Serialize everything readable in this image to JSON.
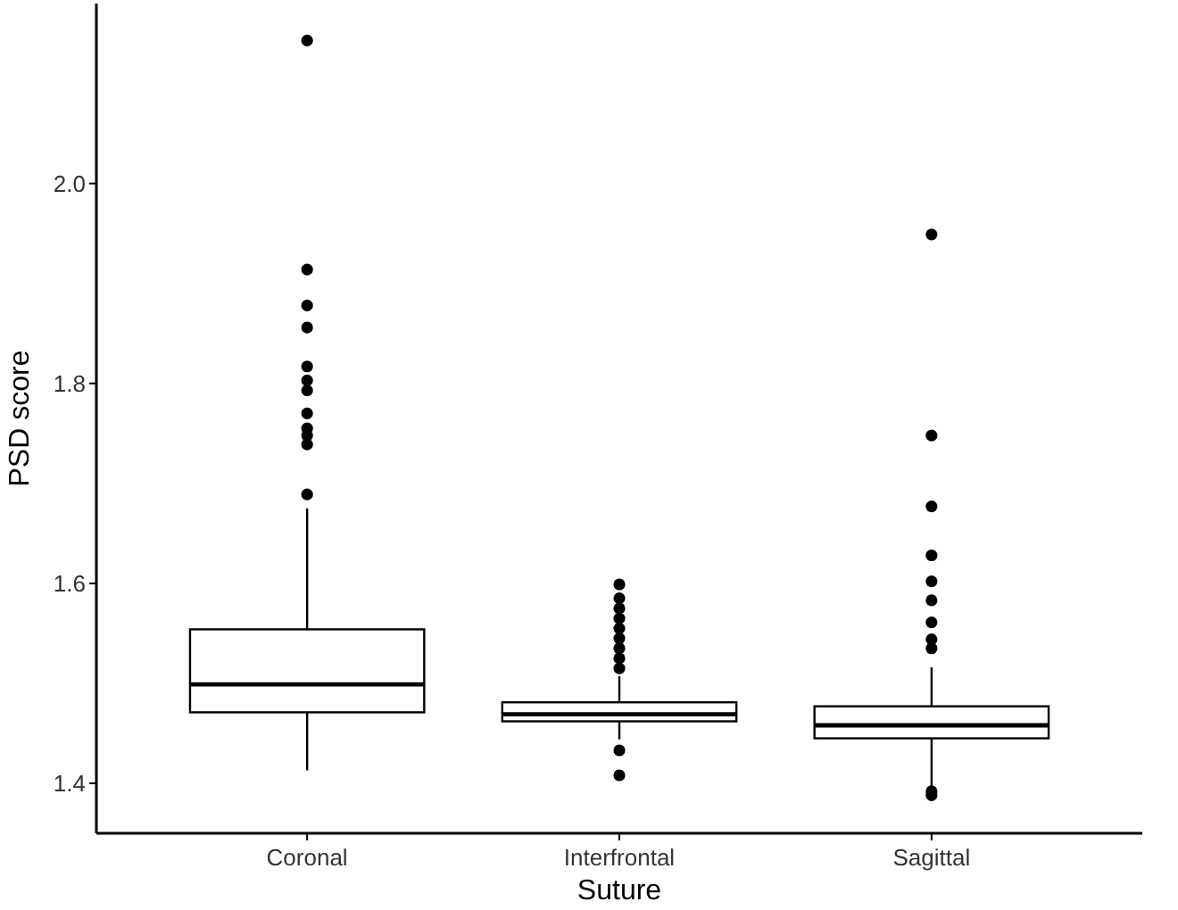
{
  "chart_data": {
    "type": "box",
    "xlabel": "Suture",
    "ylabel": "PSD score",
    "categories": [
      "Coronal",
      "Interfrontal",
      "Sagittal"
    ],
    "ylim": [
      1.35,
      2.18
    ],
    "yticks": [
      {
        "value": 1.4,
        "label": "1.4"
      },
      {
        "value": 1.6,
        "label": "1.6"
      },
      {
        "value": 1.8,
        "label": "1.8"
      },
      {
        "value": 2.0,
        "label": "2.0"
      }
    ],
    "grid": false,
    "boxes": [
      {
        "low": 1.413,
        "q1": 1.471,
        "median": 1.499,
        "q3": 1.554,
        "high": 1.675,
        "outliers": [
          1.689,
          1.739,
          1.748,
          1.755,
          1.77,
          1.793,
          1.803,
          1.817,
          1.856,
          1.878,
          1.914,
          2.143
        ]
      },
      {
        "low": 1.444,
        "q1": 1.462,
        "median": 1.469,
        "q3": 1.481,
        "high": 1.507,
        "outliers": [
          1.408,
          1.433,
          1.515,
          1.525,
          1.535,
          1.545,
          1.555,
          1.565,
          1.575,
          1.585,
          1.599
        ]
      },
      {
        "low": 1.395,
        "q1": 1.445,
        "median": 1.458,
        "q3": 1.477,
        "high": 1.516,
        "outliers": [
          1.388,
          1.392,
          1.535,
          1.544,
          1.561,
          1.583,
          1.602,
          1.628,
          1.677,
          1.748,
          1.949
        ]
      }
    ]
  }
}
